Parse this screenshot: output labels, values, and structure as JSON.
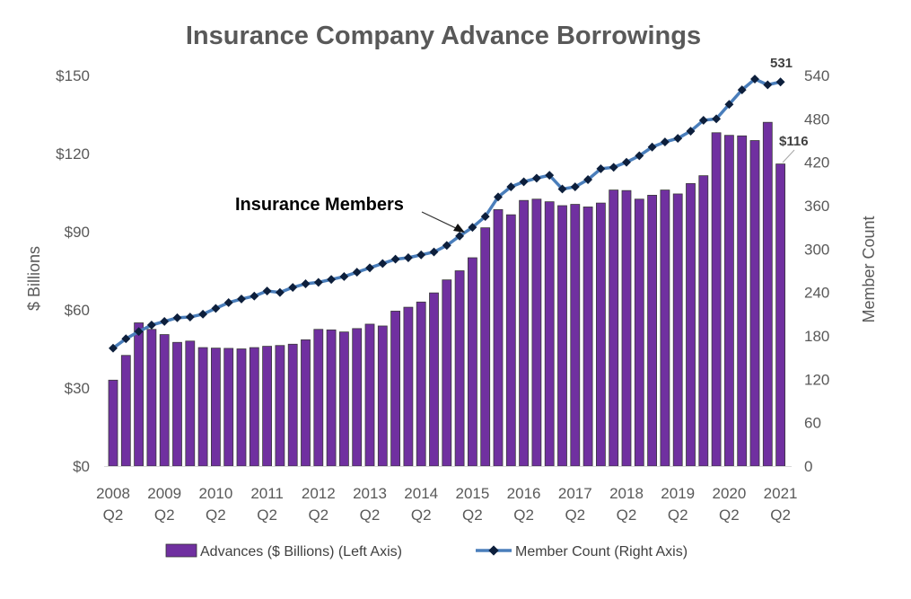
{
  "chart_data": {
    "type": "bar+line",
    "title": "Insurance Company Advance Borrowings",
    "ylabel_left": "$ Billions",
    "ylabel_right": "Member Count",
    "ylim_left": [
      0,
      150
    ],
    "ylim_right": [
      0,
      540
    ],
    "yticks_left": [
      "$0",
      "$30",
      "$60",
      "$90",
      "$120",
      "$150"
    ],
    "yticks_right": [
      "0",
      "60",
      "120",
      "180",
      "240",
      "300",
      "360",
      "420",
      "480",
      "540"
    ],
    "x_tick_labels": [
      [
        "2008",
        "Q2"
      ],
      [
        "2009",
        "Q2"
      ],
      [
        "2010",
        "Q2"
      ],
      [
        "2011",
        "Q2"
      ],
      [
        "2012",
        "Q2"
      ],
      [
        "2013",
        "Q2"
      ],
      [
        "2014",
        "Q2"
      ],
      [
        "2015",
        "Q2"
      ],
      [
        "2016",
        "Q2"
      ],
      [
        "2017",
        "Q2"
      ],
      [
        "2018",
        "Q2"
      ],
      [
        "2019",
        "Q2"
      ],
      [
        "2020",
        "Q2"
      ],
      [
        "2021",
        "Q2"
      ]
    ],
    "x_range": [
      "2008 Q2",
      "2021 Q2"
    ],
    "x_frequency": "quarterly",
    "grid": false,
    "legend_position": "bottom",
    "series": [
      {
        "name": "Advances ($ Billions) (Left Axis)",
        "type": "bar",
        "axis": "left",
        "color": "#7030a0",
        "values": [
          33,
          42.5,
          55,
          52.5,
          50.5,
          47.5,
          48,
          45.5,
          45.3,
          45.2,
          45,
          45.5,
          46,
          46.3,
          46.8,
          48.5,
          52.5,
          52.3,
          51.5,
          52.8,
          54.5,
          53.8,
          59.5,
          61,
          63,
          66.5,
          71.5,
          75,
          80,
          91.5,
          98.5,
          96.5,
          102,
          102.5,
          101.5,
          100,
          100.5,
          99.5,
          101,
          106,
          105.8,
          102.5,
          104,
          106,
          104.5,
          108.5,
          111.5,
          128,
          127,
          126.8,
          125,
          132,
          116
        ]
      },
      {
        "name": "Member Count (Right Axis)",
        "type": "line",
        "axis": "right",
        "color": "#4a7ebb",
        "marker_color": "#0d1f3c",
        "values": [
          163,
          176,
          186,
          195,
          200,
          205,
          206,
          210,
          218,
          226,
          231,
          235,
          242,
          240,
          247,
          252,
          254,
          258,
          262,
          268,
          274,
          280,
          286,
          288,
          292,
          296,
          305,
          318,
          330,
          345,
          372,
          386,
          393,
          398,
          402,
          383,
          386,
          396,
          411,
          413,
          420,
          429,
          441,
          448,
          453,
          463,
          478,
          480,
          500,
          520,
          535,
          527,
          531
        ]
      }
    ],
    "annotations": {
      "series_callout": "Insurance Members",
      "last_member_label": "531",
      "last_advance_label": "$116"
    }
  }
}
